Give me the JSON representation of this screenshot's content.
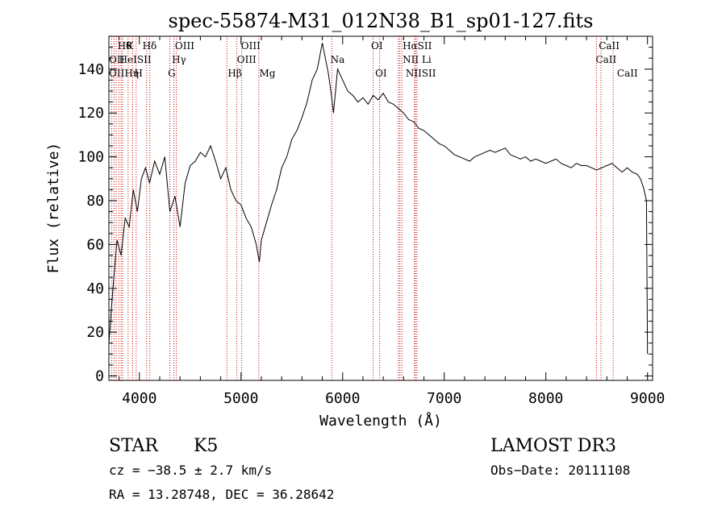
{
  "chart_data": {
    "type": "line",
    "title": "spec-55874-M31_012N38_B1_sp01-127.fits",
    "xlabel": "Wavelength (Å)",
    "ylabel": "Flux (relative)",
    "xlim": [
      3700,
      9050
    ],
    "ylim": [
      -2,
      155
    ],
    "x_ticks": [
      4000,
      5000,
      6000,
      7000,
      8000,
      9000
    ],
    "y_ticks": [
      0,
      20,
      40,
      60,
      80,
      100,
      120,
      140
    ],
    "grid": false,
    "legend": "none",
    "line_color": "#000000",
    "marker_color": "#cc0000",
    "spectrum": {
      "x": [
        3700,
        3740,
        3780,
        3820,
        3860,
        3900,
        3940,
        3980,
        4020,
        4060,
        4100,
        4150,
        4200,
        4250,
        4300,
        4350,
        4400,
        4450,
        4500,
        4550,
        4600,
        4650,
        4700,
        4750,
        4800,
        4850,
        4900,
        4950,
        5000,
        5050,
        5100,
        5150,
        5180,
        5200,
        5250,
        5300,
        5350,
        5400,
        5450,
        5500,
        5550,
        5600,
        5650,
        5700,
        5750,
        5800,
        5830,
        5860,
        5890,
        5910,
        5950,
        6000,
        6050,
        6100,
        6150,
        6200,
        6250,
        6300,
        6350,
        6400,
        6450,
        6500,
        6550,
        6600,
        6650,
        6700,
        6750,
        6800,
        6850,
        6900,
        6950,
        7000,
        7050,
        7100,
        7150,
        7200,
        7250,
        7300,
        7350,
        7400,
        7450,
        7500,
        7550,
        7600,
        7650,
        7700,
        7750,
        7800,
        7850,
        7900,
        7950,
        8000,
        8050,
        8100,
        8150,
        8200,
        8250,
        8300,
        8350,
        8400,
        8450,
        8500,
        8550,
        8600,
        8650,
        8700,
        8750,
        8800,
        8850,
        8900,
        8930,
        8960,
        8990,
        9000
      ],
      "y": [
        15,
        40,
        62,
        55,
        72,
        68,
        85,
        75,
        90,
        95,
        88,
        98,
        92,
        100,
        75,
        82,
        68,
        88,
        96,
        98,
        102,
        100,
        105,
        98,
        90,
        95,
        85,
        80,
        78,
        72,
        68,
        60,
        52,
        62,
        70,
        78,
        85,
        95,
        100,
        108,
        112,
        118,
        125,
        135,
        140,
        152,
        145,
        138,
        128,
        120,
        140,
        135,
        130,
        128,
        125,
        127,
        124,
        128,
        126,
        129,
        125,
        124,
        122,
        120,
        117,
        116,
        113,
        112,
        110,
        108,
        106,
        105,
        103,
        101,
        100,
        99,
        98,
        100,
        101,
        102,
        103,
        102,
        103,
        104,
        101,
        100,
        99,
        100,
        98,
        99,
        98,
        97,
        98,
        99,
        97,
        96,
        95,
        97,
        96,
        96,
        95,
        94,
        95,
        96,
        97,
        95,
        93,
        95,
        93,
        92,
        90,
        86,
        80,
        10
      ]
    },
    "lines": [
      {
        "x": 3727,
        "labels": [
          "OII"
        ]
      },
      {
        "x": 3750,
        "labels": [
          "OII"
        ]
      },
      {
        "x": 3771,
        "labels": [
          "Hθ"
        ]
      },
      {
        "x": 3798,
        "labels": [
          "Hθ"
        ]
      },
      {
        "x": 3820,
        "labels": [
          "HeI"
        ]
      },
      {
        "x": 3835,
        "labels": [
          "Hη"
        ]
      },
      {
        "x": 3889,
        "labels": [
          "K"
        ]
      },
      {
        "x": 3934,
        "labels": [
          "SII"
        ]
      },
      {
        "x": 3968,
        "labels": [
          "H"
        ]
      },
      {
        "x": 4072,
        "labels": [
          "SII"
        ]
      },
      {
        "x": 4102,
        "labels": [
          "Hδ"
        ]
      },
      {
        "x": 4300,
        "labels": [
          "G"
        ]
      },
      {
        "x": 4340,
        "labels": [
          "Hγ"
        ]
      },
      {
        "x": 4363,
        "labels": [
          "OIII"
        ]
      },
      {
        "x": 4861,
        "labels": [
          "Hβ"
        ]
      },
      {
        "x": 4959,
        "labels": [
          "OIII"
        ]
      },
      {
        "x": 5007,
        "labels": [
          "OIII"
        ]
      },
      {
        "x": 5175,
        "labels": [
          "Mg"
        ]
      },
      {
        "x": 5893,
        "labels": [
          "Na"
        ]
      },
      {
        "x": 6300,
        "labels": [
          "OI"
        ]
      },
      {
        "x": 6364,
        "labels": [
          "OI"
        ]
      },
      {
        "x": 6548,
        "labels": [
          "NII"
        ]
      },
      {
        "x": 6563,
        "labels": [
          "Hα"
        ]
      },
      {
        "x": 6583,
        "labels": [
          "NII"
        ]
      },
      {
        "x": 6707,
        "labels": [
          "Li"
        ]
      },
      {
        "x": 6716,
        "labels": [
          "SII"
        ]
      },
      {
        "x": 6731,
        "labels": [
          "SII"
        ]
      },
      {
        "x": 8498,
        "labels": [
          "CaII"
        ]
      },
      {
        "x": 8542,
        "labels": [
          "CaII"
        ]
      },
      {
        "x": 8662,
        "labels": [
          "CaII"
        ]
      }
    ],
    "line_label_texts": {
      "row1": [
        {
          "x": 3785,
          "text": "Hθ"
        },
        {
          "x": 3870,
          "text": "K"
        },
        {
          "x": 4030,
          "text": "Hδ"
        },
        {
          "x": 4350,
          "text": "OIII"
        },
        {
          "x": 5000,
          "text": "OIII"
        },
        {
          "x": 6280,
          "text": "OI"
        },
        {
          "x": 6590,
          "text": "HαSII"
        },
        {
          "x": 8520,
          "text": "CaII"
        }
      ],
      "row2": [
        {
          "x": 3700,
          "text": "OII"
        },
        {
          "x": 3800,
          "text": "HeISII"
        },
        {
          "x": 4320,
          "text": "Hγ"
        },
        {
          "x": 4960,
          "text": "OIII"
        },
        {
          "x": 5880,
          "text": "Na"
        },
        {
          "x": 6590,
          "text": "NII Li"
        },
        {
          "x": 8490,
          "text": "CaII"
        }
      ],
      "row3": [
        {
          "x": 3700,
          "text": "OIIHη"
        },
        {
          "x": 3950,
          "text": "H"
        },
        {
          "x": 4280,
          "text": "G"
        },
        {
          "x": 4870,
          "text": "Hβ"
        },
        {
          "x": 5180,
          "text": "Mg"
        },
        {
          "x": 6320,
          "text": "OI"
        },
        {
          "x": 6620,
          "text": "NIISII"
        },
        {
          "x": 8700,
          "text": "CaII"
        }
      ]
    }
  },
  "info": {
    "object_class": "STAR",
    "subclass": "K5",
    "survey": "LAMOST DR3",
    "cz": "cz = −38.5 ± 2.7 km/s",
    "obs_date": "Obs−Date: 20111108",
    "coords": "RA =  13.28748, DEC =  36.28642"
  }
}
